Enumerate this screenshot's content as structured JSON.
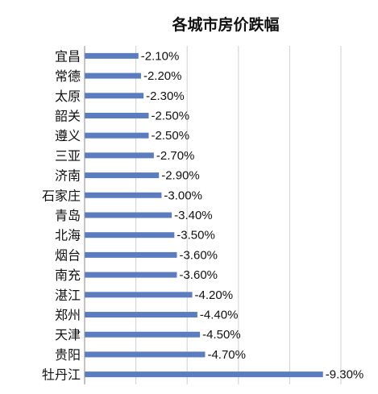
{
  "chart_data": {
    "type": "bar",
    "orientation": "horizontal",
    "title": "各城市房价跌幅",
    "categories": [
      "宜昌",
      "常德",
      "太原",
      "韶关",
      "遵义",
      "三亚",
      "济南",
      "石家庄",
      "青岛",
      "北海",
      "烟台",
      "南充",
      "湛江",
      "郑州",
      "天津",
      "贵阳",
      "牡丹江"
    ],
    "values": [
      -2.1,
      -2.2,
      -2.3,
      -2.5,
      -2.5,
      -2.7,
      -2.9,
      -3.0,
      -3.4,
      -3.5,
      -3.6,
      -3.6,
      -4.2,
      -4.4,
      -4.5,
      -4.7,
      -9.3
    ],
    "data_labels": [
      "-2.10%",
      "-2.20%",
      "-2.30%",
      "-2.50%",
      "-2.50%",
      "-2.70%",
      "-2.90%",
      "-3.00%",
      "-3.40%",
      "-3.50%",
      "-3.60%",
      "-3.60%",
      "-4.20%",
      "-4.40%",
      "-4.50%",
      "-4.70%",
      "-9.30%"
    ],
    "value_axis_range": [
      0,
      -10
    ],
    "grid": true,
    "legend": "none",
    "bar_color": "#5b7dbf"
  }
}
